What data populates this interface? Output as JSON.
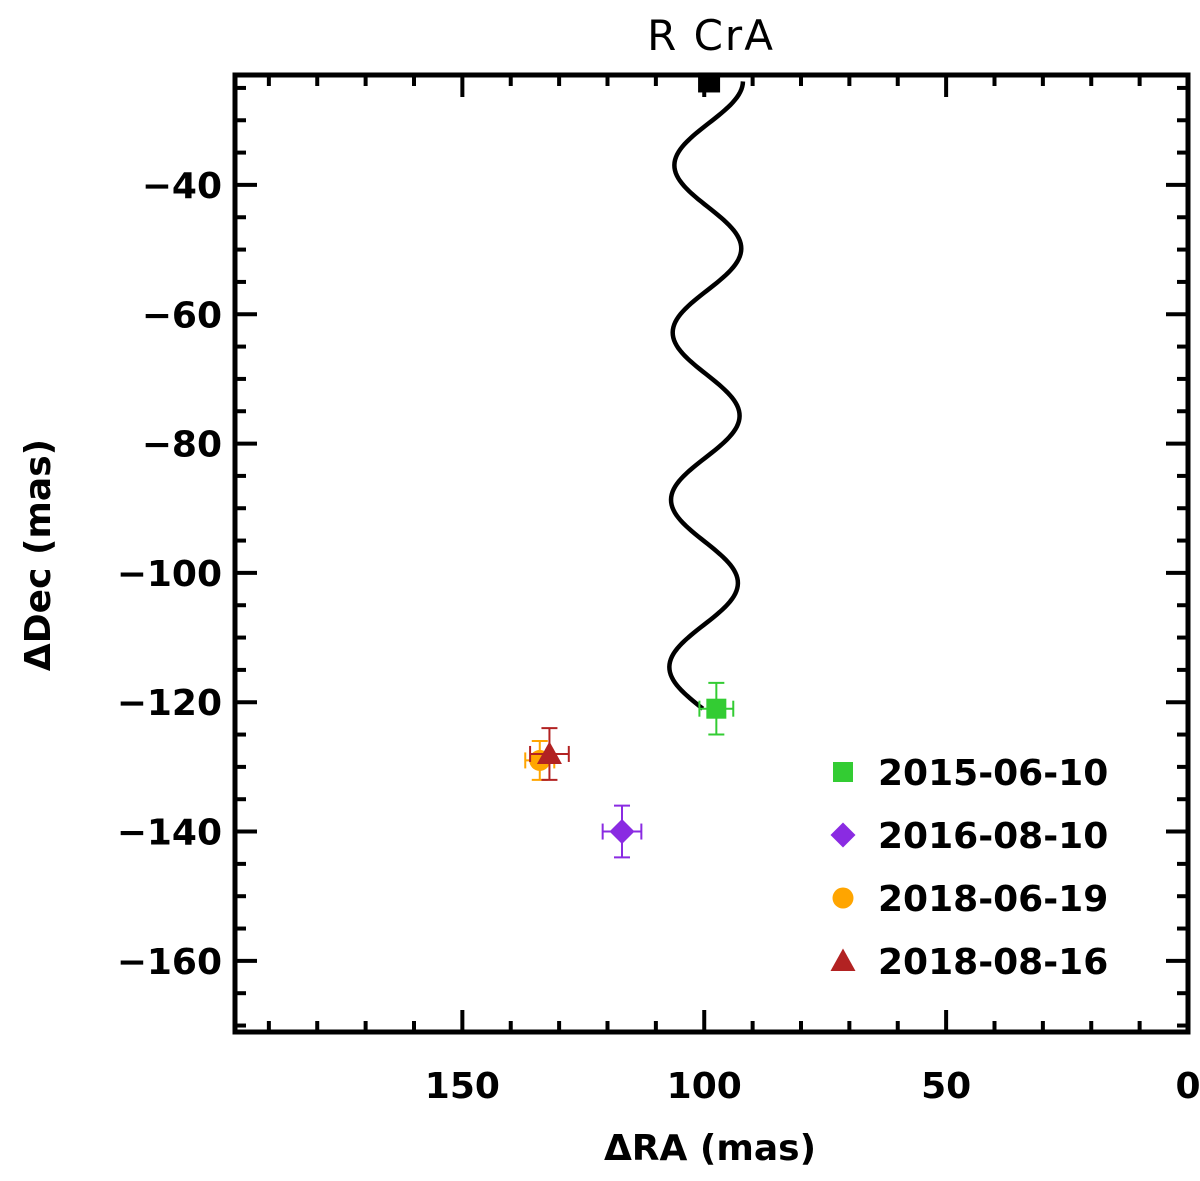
{
  "chart_data": {
    "type": "scatter",
    "title": "R  CrA",
    "xlabel": "ΔRA (mas)",
    "ylabel": "ΔDec (mas)",
    "xlim": [
      197,
      0
    ],
    "ylim": [
      -171,
      -23
    ],
    "xticks": [
      150,
      100,
      50,
      0
    ],
    "yticks": [
      -40,
      -60,
      -80,
      -100,
      -120,
      -140,
      -160
    ],
    "xtick_labels": [
      "150",
      "100",
      "50",
      "0"
    ],
    "ytick_labels": [
      "−40",
      "−60",
      "−80",
      "−100",
      "−120",
      "−140",
      "−160"
    ],
    "xminor_step": 10,
    "yminor_step": 5,
    "track": {
      "name": "predicted background track",
      "color": "#000000",
      "start": {
        "x": 100.3,
        "y": -121.0
      },
      "end": {
        "x": 99.0,
        "y": -24.0
      },
      "wobble_amplitude": 7.0,
      "wobble_cycles": 3.75,
      "end_marker": "square"
    },
    "series": [
      {
        "name": "2015-06-10",
        "marker": "square",
        "color": "#33cc33",
        "x": 97.5,
        "y": -121.0,
        "xerr": 3.5,
        "yerr": 4.0
      },
      {
        "name": "2016-08-10",
        "marker": "diamond",
        "color": "#8a2be2",
        "x": 117.0,
        "y": -140.0,
        "xerr": 4.0,
        "yerr": 4.0
      },
      {
        "name": "2018-06-19",
        "marker": "circle",
        "color": "#ffa500",
        "x": 134.0,
        "y": -129.0,
        "xerr": 3.0,
        "yerr": 3.0
      },
      {
        "name": "2018-08-16",
        "marker": "triangle",
        "color": "#b22222",
        "x": 132.0,
        "y": -128.0,
        "xerr": 4.0,
        "yerr": 4.0
      }
    ],
    "legend_position": "bottom-right"
  }
}
